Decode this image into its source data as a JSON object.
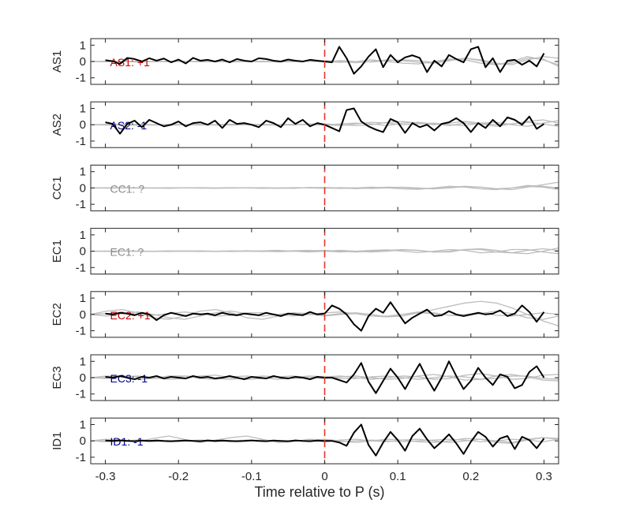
{
  "figure": {
    "xlabel": "Time relative to P (s)"
  },
  "chart_data": {
    "type": "line",
    "xlim": [
      -0.32,
      0.32
    ],
    "x_ticks": [
      -0.3,
      -0.2,
      -0.1,
      0,
      0.1,
      0.2,
      0.3
    ],
    "x_tick_labels": [
      "-0.3",
      "-0.2",
      "-0.1",
      "0",
      "0.1",
      "0.2",
      "0.3"
    ],
    "ylim": [
      -1.4,
      1.4
    ],
    "y_ticks": [
      -1,
      0,
      1
    ],
    "y_tick_labels": [
      "-1",
      "0",
      "1"
    ],
    "xlabel": "Time relative to P (s)",
    "marker_x": 0,
    "colors": {
      "trace": "#000000",
      "background_traces": "#bdbdbd",
      "marker": "#e8342a",
      "positive": "#cc0000",
      "negative": "#00008b",
      "unknown": "#8c8c8c"
    },
    "panels": [
      {
        "ylabel": "AS1",
        "label": "AS1: +1",
        "label_color": "#cc0000",
        "trace": [
          0.08,
          0.02,
          -0.15,
          0.22,
          0.15,
          0.0,
          0.2,
          0.05,
          0.18,
          -0.05,
          0.12,
          -0.12,
          0.22,
          0.05,
          0.1,
          0.0,
          0.12,
          -0.05,
          0.15,
          0.05,
          0.0,
          0.2,
          0.15,
          0.05,
          0.0,
          0.12,
          0.05,
          0.0,
          0.1,
          0.05,
          0.0,
          -0.05,
          0.9,
          0.2,
          -0.75,
          -0.3,
          0.3,
          0.75,
          -0.35,
          0.4,
          -0.05,
          0.25,
          0.38,
          0.22,
          -0.65,
          0.05,
          -0.3,
          0.4,
          0.15,
          -0.05,
          0.75,
          0.9,
          -0.35,
          0.2,
          -0.65,
          0.05,
          0.1,
          -0.2,
          0.05,
          -0.3,
          0.5
        ],
        "background": [
          [
            0.0,
            0.02,
            0.0,
            -0.03,
            0.0,
            0.02,
            0.0,
            -0.02,
            0.0,
            0.02,
            0.0,
            -0.02,
            0.0,
            0.03,
            0.0,
            -0.02,
            0.05,
            0.0,
            -0.03,
            0.05,
            0.1,
            0.05,
            -0.05,
            0.1,
            0.2,
            0.05,
            -0.2,
            -0.1,
            0.2,
            0.15,
            -0.3
          ],
          [
            0.0,
            -0.02,
            0.0,
            0.02,
            0.0,
            -0.02,
            0.0,
            0.02,
            0.0,
            -0.03,
            0.0,
            0.02,
            0.0,
            -0.02,
            0.05,
            0.0,
            -0.05,
            0.0,
            0.1,
            0.0,
            -0.1,
            -0.15,
            0.0,
            0.15,
            0.1,
            -0.1,
            -0.2,
            0.0,
            0.3,
            0.1,
            -0.2
          ],
          [
            0.0,
            0.0,
            0.02,
            0.0,
            -0.02,
            0.0,
            0.02,
            0.0,
            -0.02,
            0.0,
            0.03,
            0.0,
            -0.03,
            0.0,
            0.02,
            0.05,
            0.0,
            -0.08,
            0.0,
            0.1,
            0.05,
            -0.05,
            -0.1,
            0.05,
            0.2,
            0.1,
            -0.1,
            -0.2,
            0.1,
            0.3,
            0.2
          ]
        ]
      },
      {
        "ylabel": "AS2",
        "label": "AS2: -1",
        "label_color": "#00008b",
        "trace": [
          0.15,
          0.05,
          -0.55,
          0.05,
          0.25,
          -0.15,
          0.3,
          0.1,
          -0.1,
          0.0,
          0.2,
          -0.1,
          0.1,
          0.15,
          0.0,
          0.25,
          -0.2,
          0.3,
          0.05,
          0.1,
          0.0,
          -0.15,
          0.25,
          0.1,
          -0.15,
          0.4,
          0.05,
          0.3,
          -0.1,
          0.1,
          0.0,
          -0.2,
          -0.4,
          0.9,
          1.0,
          0.2,
          -0.1,
          -0.3,
          -0.45,
          0.35,
          0.15,
          -0.5,
          0.1,
          -0.15,
          0.0,
          -0.35,
          0.05,
          0.15,
          0.4,
          0.1,
          -0.45,
          0.1,
          -0.2,
          0.3,
          -0.1,
          0.45,
          0.3,
          0.0,
          0.5,
          -0.25,
          0.05
        ],
        "background": [
          [
            0.0,
            0.02,
            0.0,
            -0.03,
            0.0,
            0.02,
            0.0,
            -0.02,
            0.0,
            0.03,
            0.0,
            -0.02,
            0.0,
            0.02,
            0.0,
            -0.02,
            0.05,
            0.1,
            0.05,
            -0.05,
            0.1,
            0.15,
            0.05,
            -0.05,
            0.1,
            0.05,
            -0.1,
            0.05,
            0.15,
            0.05,
            -0.1
          ],
          [
            0.0,
            -0.02,
            0.0,
            0.02,
            0.0,
            -0.03,
            0.0,
            0.02,
            0.0,
            -0.02,
            0.0,
            0.02,
            0.0,
            -0.02,
            0.05,
            0.0,
            -0.05,
            0.05,
            0.15,
            0.1,
            0.0,
            0.05,
            0.1,
            0.0,
            -0.05,
            0.1,
            0.15,
            0.0,
            -0.1,
            0.1,
            0.25
          ],
          [
            0.0,
            0.0,
            0.03,
            0.0,
            -0.02,
            0.0,
            0.02,
            0.0,
            -0.02,
            0.0,
            0.02,
            0.0,
            -0.02,
            0.0,
            0.03,
            0.05,
            0.0,
            -0.05,
            0.0,
            0.15,
            0.2,
            0.1,
            0.0,
            0.1,
            0.2,
            0.1,
            0.0,
            0.05,
            0.2,
            0.3,
            0.1
          ]
        ]
      },
      {
        "ylabel": "CC1",
        "label": "CC1: ?",
        "label_color": "#8c8c8c",
        "trace": [],
        "background": [
          [
            0.0,
            0.01,
            0.0,
            -0.01,
            0.0,
            0.01,
            0.0,
            -0.01,
            0.0,
            0.02,
            0.0,
            -0.02,
            0.0,
            0.02,
            0.0,
            -0.02,
            0.02,
            0.0,
            -0.03,
            0.0,
            0.05,
            0.0,
            -0.05,
            0.0,
            0.08,
            0.05,
            -0.05,
            0.0,
            0.1,
            0.05,
            -0.1
          ],
          [
            0.0,
            -0.01,
            0.0,
            0.01,
            0.0,
            -0.02,
            0.0,
            0.02,
            0.0,
            -0.01,
            0.0,
            0.02,
            0.0,
            -0.02,
            0.03,
            0.0,
            -0.03,
            0.0,
            0.05,
            0.0,
            -0.05,
            -0.08,
            0.0,
            0.1,
            0.05,
            -0.05,
            -0.1,
            0.0,
            0.15,
            0.1,
            0.0
          ],
          [
            0.0,
            0.0,
            0.02,
            0.0,
            -0.01,
            0.0,
            0.01,
            0.0,
            -0.02,
            0.0,
            0.02,
            0.0,
            -0.02,
            0.0,
            0.02,
            0.03,
            0.0,
            -0.04,
            0.0,
            0.05,
            0.03,
            -0.03,
            -0.05,
            0.03,
            0.1,
            0.05,
            -0.05,
            -0.1,
            0.05,
            0.2,
            0.35
          ]
        ]
      },
      {
        "ylabel": "EC1",
        "label": "EC1: ?",
        "label_color": "#8c8c8c",
        "trace": [],
        "background": [
          [
            0.0,
            0.01,
            0.0,
            -0.01,
            0.0,
            0.02,
            0.0,
            -0.02,
            0.0,
            0.02,
            0.0,
            -0.02,
            0.0,
            0.03,
            0.05,
            0.0,
            -0.05,
            0.0,
            0.05,
            0.08,
            0.0,
            -0.08,
            0.0,
            0.1,
            0.05,
            -0.1,
            -0.05,
            0.1,
            0.1,
            -0.05,
            -0.15
          ],
          [
            0.0,
            -0.01,
            0.0,
            0.01,
            0.0,
            -0.02,
            0.0,
            0.02,
            0.0,
            -0.02,
            0.0,
            0.02,
            0.05,
            0.0,
            -0.05,
            0.0,
            0.05,
            0.0,
            -0.05,
            0.0,
            0.08,
            0.05,
            -0.05,
            -0.05,
            0.1,
            0.1,
            -0.05,
            -0.1,
            0.05,
            0.15,
            0.05
          ],
          [
            0.0,
            0.0,
            0.02,
            0.0,
            -0.02,
            0.0,
            0.02,
            0.0,
            -0.02,
            0.0,
            0.03,
            0.0,
            -0.03,
            0.0,
            0.02,
            0.05,
            0.0,
            -0.05,
            0.0,
            0.05,
            0.1,
            0.05,
            -0.05,
            0.0,
            0.1,
            0.15,
            0.05,
            -0.1,
            -0.15,
            0.0,
            0.2
          ]
        ]
      },
      {
        "ylabel": "EC2",
        "label": "EC2: +1",
        "label_color": "#cc0000",
        "trace": [
          0.05,
          0.0,
          0.1,
          0.05,
          -0.05,
          0.1,
          0.0,
          -0.35,
          -0.05,
          0.1,
          0.0,
          -0.1,
          0.05,
          0.0,
          0.05,
          -0.05,
          0.1,
          0.0,
          -0.05,
          0.05,
          0.0,
          -0.05,
          0.1,
          0.0,
          -0.1,
          0.05,
          0.0,
          -0.05,
          0.15,
          0.0,
          0.05,
          0.55,
          0.35,
          0.0,
          -0.6,
          -1.0,
          -0.1,
          0.35,
          0.1,
          0.75,
          0.1,
          -0.55,
          -0.2,
          0.05,
          0.3,
          -0.1,
          -0.05,
          0.2,
          0.0,
          -0.1,
          0.0,
          0.1,
          0.0,
          0.05,
          0.25,
          -0.1,
          0.05,
          0.55,
          0.15,
          -0.45,
          0.15
        ],
        "background": [
          [
            0.0,
            0.2,
            0.3,
            0.1,
            -0.2,
            -0.3,
            -0.1,
            0.2,
            0.3,
            0.1,
            -0.2,
            -0.3,
            -0.1,
            0.1,
            0.05,
            -0.1,
            0.0,
            0.05,
            -0.1,
            -0.1,
            0.0,
            0.1,
            0.05,
            -0.05,
            0.0,
            0.1,
            -0.05,
            -0.1,
            0.0,
            0.1,
            0.0
          ],
          [
            0.0,
            -0.1,
            0.05,
            0.15,
            0.0,
            -0.2,
            -0.3,
            -0.1,
            0.1,
            0.2,
            0.05,
            -0.1,
            0.0,
            0.1,
            0.0,
            -0.05,
            0.05,
            0.1,
            0.0,
            -0.15,
            -0.1,
            0.1,
            0.3,
            0.5,
            0.7,
            0.8,
            0.7,
            0.4,
            0.0,
            -0.4,
            -0.7
          ],
          [
            0.0,
            0.05,
            0.1,
            0.0,
            -0.05,
            0.05,
            0.15,
            0.05,
            -0.1,
            -0.05,
            0.1,
            0.1,
            0.0,
            -0.1,
            0.0,
            0.1,
            0.15,
            0.05,
            -0.1,
            -0.15,
            0.0,
            0.15,
            0.1,
            -0.05,
            -0.1,
            0.05,
            0.2,
            0.05,
            -0.2,
            -0.3,
            -0.1
          ]
        ]
      },
      {
        "ylabel": "EC3",
        "label": "EC3: -1",
        "label_color": "#00008b",
        "trace": [
          0.05,
          0.0,
          0.1,
          0.0,
          -0.1,
          0.05,
          0.0,
          0.1,
          -0.05,
          0.05,
          0.0,
          -0.05,
          0.1,
          0.0,
          0.05,
          -0.05,
          0.0,
          0.1,
          0.0,
          -0.1,
          0.05,
          0.0,
          -0.05,
          0.1,
          0.0,
          -0.05,
          0.05,
          0.0,
          -0.1,
          0.05,
          0.0,
          0.0,
          -0.15,
          -0.3,
          0.2,
          0.9,
          -0.25,
          -0.95,
          -0.2,
          0.55,
          0.0,
          -0.7,
          0.1,
          0.85,
          -0.05,
          -0.8,
          0.0,
          1.0,
          0.1,
          -0.7,
          -0.2,
          0.6,
          0.0,
          -0.45,
          0.2,
          0.05,
          -0.65,
          -0.45,
          0.35,
          0.7,
          0.0
        ],
        "background": [
          [
            0.0,
            0.1,
            0.05,
            -0.1,
            -0.05,
            0.1,
            0.1,
            -0.05,
            -0.1,
            0.05,
            0.1,
            0.0,
            -0.1,
            0.0,
            0.1,
            0.05,
            -0.05,
            -0.05,
            0.05,
            0.1,
            0.0,
            -0.1,
            0.0,
            0.1,
            0.05,
            -0.1,
            -0.05,
            0.1,
            0.1,
            -0.05,
            -0.1
          ],
          [
            0.0,
            -0.05,
            0.05,
            0.1,
            0.0,
            -0.1,
            -0.05,
            0.1,
            0.15,
            0.0,
            -0.1,
            -0.05,
            0.05,
            0.1,
            0.0,
            -0.05,
            0.05,
            0.1,
            0.0,
            -0.1,
            -0.05,
            0.1,
            0.2,
            0.05,
            -0.15,
            -0.1,
            0.1,
            0.2,
            0.05,
            -0.15,
            -0.2
          ],
          [
            0.0,
            0.0,
            0.1,
            0.05,
            -0.05,
            0.0,
            0.1,
            0.05,
            -0.05,
            -0.1,
            0.0,
            0.1,
            0.05,
            -0.05,
            0.0,
            0.05,
            0.1,
            0.0,
            -0.1,
            0.0,
            0.1,
            0.05,
            -0.1,
            -0.05,
            0.15,
            0.25,
            0.1,
            -0.1,
            -0.05,
            0.15,
            0.2
          ]
        ]
      },
      {
        "ylabel": "ID1",
        "label": "ID1: -1",
        "label_color": "#00008b",
        "trace": [
          0.02,
          0.0,
          0.03,
          0.0,
          -0.02,
          0.02,
          0.0,
          0.03,
          0.0,
          -0.02,
          0.0,
          0.02,
          0.0,
          -0.02,
          0.03,
          0.0,
          0.02,
          0.0,
          -0.02,
          0.0,
          0.03,
          0.0,
          -0.02,
          0.02,
          0.0,
          -0.02,
          0.03,
          0.0,
          -0.02,
          0.02,
          0.0,
          0.0,
          -0.1,
          -0.3,
          0.5,
          1.0,
          -0.25,
          -0.9,
          -0.1,
          0.55,
          0.05,
          -0.6,
          0.3,
          0.75,
          0.1,
          -0.45,
          -0.05,
          0.4,
          -0.15,
          -0.8,
          -0.05,
          0.55,
          0.25,
          -0.35,
          0.15,
          0.3,
          -0.5,
          0.25,
          0.05,
          -0.45,
          0.15
        ],
        "background": [
          [
            0.0,
            0.1,
            0.05,
            -0.05,
            0.15,
            0.3,
            0.1,
            -0.1,
            0.05,
            0.2,
            0.3,
            0.1,
            -0.1,
            -0.05,
            0.1,
            0.05,
            -0.05,
            0.0,
            0.05,
            0.0,
            -0.05,
            0.0,
            0.05,
            0.1,
            0.05,
            -0.05,
            0.0,
            0.1,
            0.05,
            -0.05,
            0.1
          ],
          [
            0.0,
            -0.05,
            0.0,
            0.05,
            0.0,
            -0.05,
            0.0,
            0.05,
            0.0,
            -0.05,
            0.0,
            0.05,
            0.0,
            0.0,
            0.05,
            0.1,
            0.0,
            -0.1,
            0.0,
            0.1,
            0.05,
            -0.05,
            -0.1,
            0.0,
            0.15,
            0.1,
            -0.1,
            -0.15,
            0.05,
            0.2,
            0.1
          ],
          [
            0.0,
            0.0,
            0.05,
            0.0,
            -0.05,
            0.0,
            0.05,
            0.0,
            -0.05,
            0.0,
            0.05,
            0.0,
            -0.05,
            0.0,
            0.0,
            -0.05,
            0.05,
            0.1,
            0.0,
            -0.05,
            0.05,
            0.1,
            0.0,
            -0.1,
            0.0,
            0.1,
            0.0,
            -0.1,
            0.1,
            0.2,
            0.15
          ]
        ]
      }
    ]
  }
}
